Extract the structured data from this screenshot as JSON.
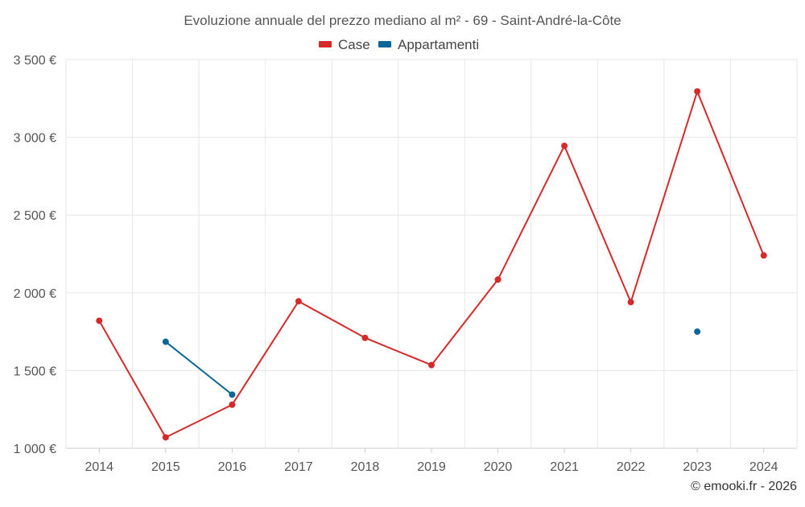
{
  "chart_data": {
    "type": "line",
    "title": "Evoluzione annuale del prezzo mediano al m² - 69 - Saint-André-la-Côte",
    "xlabel": "",
    "ylabel": "",
    "categories": [
      "2014",
      "2015",
      "2016",
      "2017",
      "2018",
      "2019",
      "2020",
      "2021",
      "2022",
      "2023",
      "2024"
    ],
    "ylim": [
      1000,
      3500
    ],
    "yticks": [
      1000,
      1500,
      2000,
      2500,
      3000,
      3500
    ],
    "ytick_labels": [
      "1 000 €",
      "1 500 €",
      "2 000 €",
      "2 500 €",
      "3 000 €",
      "3 500 €"
    ],
    "grid": true,
    "legend_position": "top-center",
    "series": [
      {
        "name": "Case",
        "color": "#d42a2a",
        "values": [
          1820,
          1070,
          1280,
          1945,
          1710,
          1535,
          2085,
          2945,
          1940,
          3295,
          2240
        ]
      },
      {
        "name": "Appartamenti",
        "color": "#0a6696",
        "values": [
          null,
          1685,
          1345,
          null,
          null,
          null,
          null,
          null,
          null,
          1750,
          null
        ]
      }
    ]
  },
  "credit": "© emooki.fr - 2026"
}
